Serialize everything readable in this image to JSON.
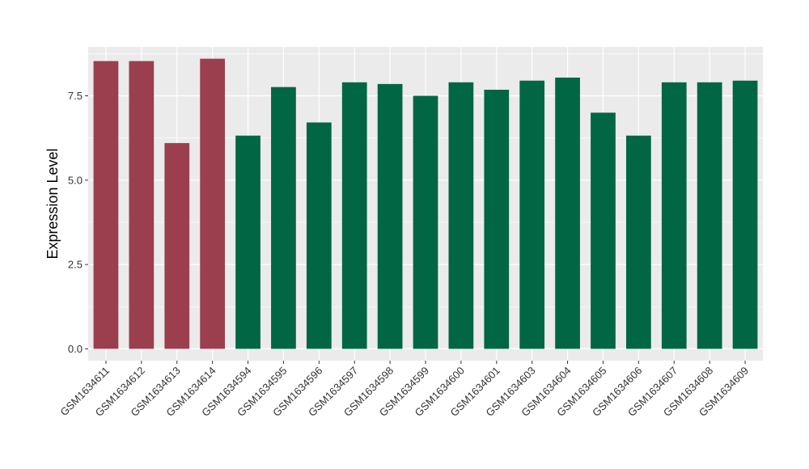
{
  "chart_data": {
    "type": "bar",
    "title": "",
    "xlabel": "",
    "ylabel": "Expression Level",
    "ylim": [
      -0.35,
      8.95
    ],
    "yticks": [
      0.0,
      2.5,
      5.0,
      7.5
    ],
    "ytick_labels": [
      "0.0",
      "2.5",
      "5.0",
      "7.5"
    ],
    "grid": true,
    "legend": "none",
    "categories": [
      "GSM1634611",
      "GSM1634612",
      "GSM1634613",
      "GSM1634614",
      "GSM1634594",
      "GSM1634595",
      "GSM1634596",
      "GSM1634597",
      "GSM1634598",
      "GSM1634599",
      "GSM1634600",
      "GSM1634601",
      "GSM1634603",
      "GSM1634604",
      "GSM1634605",
      "GSM1634606",
      "GSM1634607",
      "GSM1634608",
      "GSM1634609"
    ],
    "values": [
      8.53,
      8.53,
      6.1,
      8.6,
      6.32,
      7.76,
      6.71,
      7.9,
      7.85,
      7.5,
      7.9,
      7.68,
      7.95,
      8.04,
      7.0,
      6.32,
      7.9,
      7.9,
      7.95
    ],
    "bar_colors": [
      "#9b3f4f",
      "#9b3f4f",
      "#9b3f4f",
      "#9b3f4f",
      "#006644",
      "#006644",
      "#006644",
      "#006644",
      "#006644",
      "#006644",
      "#006644",
      "#006644",
      "#006644",
      "#006644",
      "#006644",
      "#006644",
      "#006644",
      "#006644",
      "#006644"
    ],
    "colors": {
      "panel_background": "#ebebeb",
      "grid": "#ffffff",
      "group_a": "#9b3f4f",
      "group_b": "#006644"
    }
  }
}
